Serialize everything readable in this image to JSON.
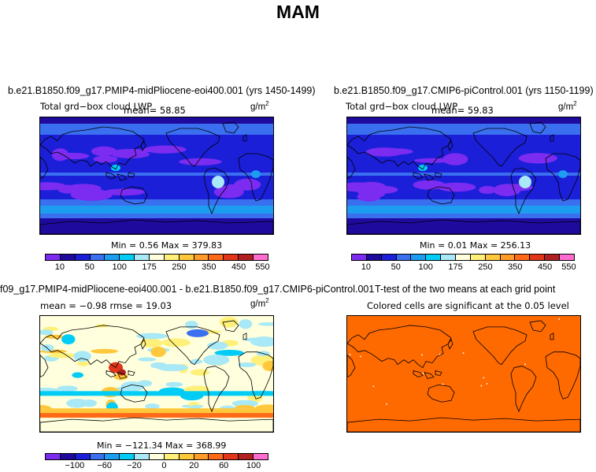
{
  "title": "MAM",
  "colors": {
    "abs_scale": [
      "#7b2cf0",
      "#1f0a9e",
      "#1b1fd8",
      "#3a6ff0",
      "#1c9df0",
      "#00ccf5",
      "#a8e8f7",
      "#ffffdd",
      "#fff07a",
      "#ffc83c",
      "#ff9b28",
      "#ff6a18",
      "#e2361a",
      "#b02020",
      "#ff6ccf"
    ],
    "diff_scale": [
      "#7b2cf0",
      "#1f0a9e",
      "#1b1fd8",
      "#3a6ff0",
      "#1c9df0",
      "#00ccf5",
      "#a8e8f7",
      "#ffffdd",
      "#fff07a",
      "#ffc83c",
      "#ff9b28",
      "#ff6a18",
      "#e2361a",
      "#b02020",
      "#ff6ccf"
    ],
    "ttest_fill": "#ff6a00"
  },
  "panels": {
    "p1": {
      "title": "b.e21.B1850.f09_g17.PMIP4-midPliocene-eoi400.001 (yrs 1450-1499)",
      "subtitle": "Total grd−box cloud LWP",
      "mean": "mean=   58.85",
      "units": "g/m",
      "units_sup": "2",
      "minmax": "Min =    0.56  Max = 379.83"
    },
    "p2": {
      "title": "b.e21.B1850.f09_g17.CMIP6-piControl.001 (yrs 1150-1199)",
      "subtitle": "Total grd−box cloud LWP",
      "mean": "mean=   59.83",
      "units": "g/m",
      "units_sup": "2",
      "minmax": "Min =    0.01  Max = 256.13"
    },
    "p3": {
      "title": "f09_g17.PMIP4-midPliocene-eoi400.001 - b.e21.B1850.f09_g17.CMIP6-piControl.001",
      "stats": "mean =   −0.98     rmse =   19.03",
      "units": "g/m",
      "units_sup": "2",
      "minmax": "Min = −121.34  Max = 368.99"
    },
    "p4": {
      "title": "T-test of the two means at each grid point",
      "subtitle": "Colored cells are significant at the 0.05 level"
    }
  },
  "chart_data": [
    {
      "type": "heatmap",
      "title": "b.e21.B1850.f09_g17.PMIP4-midPliocene-eoi400.001 (yrs 1450-1499)",
      "variable": "Total grd-box cloud LWP",
      "units": "g/m2",
      "mean": 58.85,
      "min": 0.56,
      "max": 379.83,
      "colorbar_ticks": [
        "10",
        "50",
        "100",
        "175",
        "250",
        "350",
        "450",
        "550"
      ]
    },
    {
      "type": "heatmap",
      "title": "b.e21.B1850.f09_g17.CMIP6-piControl.001 (yrs 1150-1199)",
      "variable": "Total grd-box cloud LWP",
      "units": "g/m2",
      "mean": 59.83,
      "min": 0.01,
      "max": 256.13,
      "colorbar_ticks": [
        "10",
        "50",
        "100",
        "175",
        "250",
        "350",
        "450",
        "550"
      ]
    },
    {
      "type": "heatmap",
      "title": "f09_g17.PMIP4-midPliocene-eoi400.001 - b.e21.B1850.f09_g17.CMIP6-piControl.001",
      "units": "g/m2",
      "mean": -0.98,
      "rmse": 19.03,
      "min": -121.34,
      "max": 368.99,
      "colorbar_ticks": [
        "−100",
        "−60",
        "−20",
        "0",
        "20",
        "60",
        "100"
      ]
    },
    {
      "type": "heatmap",
      "title": "T-test of the two means at each grid point",
      "note": "Colored cells are significant at the 0.05 level"
    }
  ]
}
